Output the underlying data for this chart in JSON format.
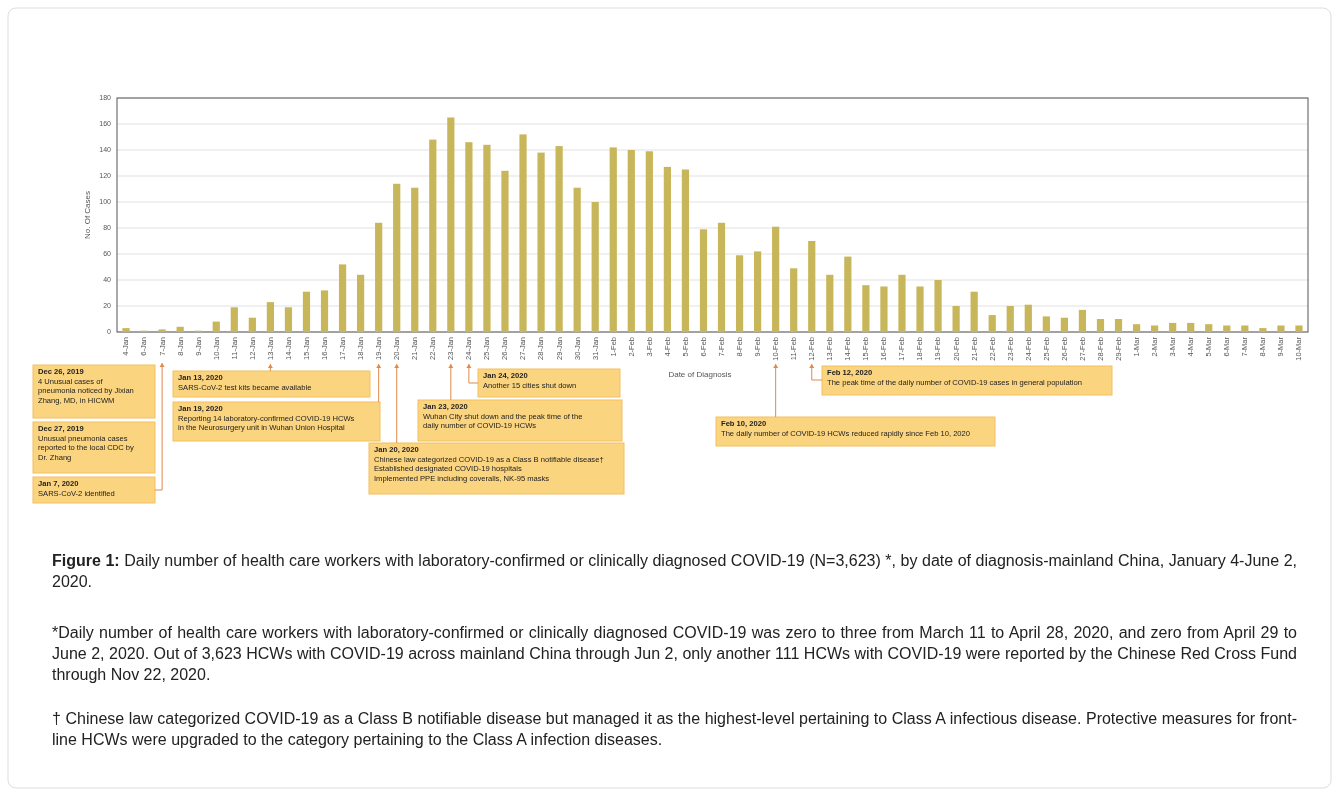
{
  "chart_data": {
    "type": "bar",
    "xlabel": "Date of Diagnosis",
    "ylabel": "No. Of Cases",
    "categories": [
      "4-Jan",
      "6-Jan",
      "7-Jan",
      "8-Jan",
      "9-Jan",
      "10-Jan",
      "11-Jan",
      "12-Jan",
      "13-Jan",
      "14-Jan",
      "15-Jan",
      "16-Jan",
      "17-Jan",
      "18-Jan",
      "19-Jan",
      "20-Jan",
      "21-Jan",
      "22-Jan",
      "23-Jan",
      "24-Jan",
      "25-Jan",
      "26-Jan",
      "27-Jan",
      "28-Jan",
      "29-Jan",
      "30-Jan",
      "31-Jan",
      "1-Feb",
      "2-Feb",
      "3-Feb",
      "4-Feb",
      "5-Feb",
      "6-Feb",
      "7-Feb",
      "8-Feb",
      "9-Feb",
      "10-Feb",
      "11-Feb",
      "12-Feb",
      "13-Feb",
      "14-Feb",
      "15-Feb",
      "16-Feb",
      "17-Feb",
      "18-Feb",
      "19-Feb",
      "20-Feb",
      "21-Feb",
      "22-Feb",
      "23-Feb",
      "24-Feb",
      "25-Feb",
      "26-Feb",
      "27-Feb",
      "28-Feb",
      "29-Feb",
      "1-Mar",
      "2-Mar",
      "3-Mar",
      "4-Mar",
      "5-Mar",
      "6-Mar",
      "7-Mar",
      "8-Mar",
      "9-Mar",
      "10-Mar"
    ],
    "values": [
      3,
      1,
      2,
      4,
      1,
      8,
      19,
      11,
      23,
      19,
      31,
      32,
      52,
      44,
      84,
      114,
      111,
      148,
      165,
      146,
      144,
      124,
      152,
      138,
      143,
      111,
      100,
      142,
      140,
      139,
      127,
      125,
      79,
      84,
      59,
      62,
      81,
      49,
      70,
      44,
      58,
      36,
      35,
      44,
      35,
      40,
      20,
      31,
      13,
      20,
      21,
      12,
      11,
      17,
      10,
      10,
      6,
      5,
      7,
      7,
      6,
      5,
      5,
      3,
      5,
      5
    ],
    "color": "#c8b65a",
    "ylim": [
      0,
      180
    ],
    "yticks": [
      0,
      20,
      40,
      60,
      80,
      100,
      120,
      140,
      160,
      180
    ],
    "grid": "y",
    "annotations": [
      "Dec 26, 2019\n4 Unusual cases of\npneumonia noticed by Jixian\nZhang, MD, in HICWM",
      "Dec 27, 2019\nUnusual pneumonia cases\nreported to the local CDC by\nDr. Zhang",
      "Jan 7, 2020\nSARS-CoV-2 identified",
      "Jan 13, 2020\nSARS-CoV-2 test kits became available",
      "Jan 19, 2020\nReporting 14 laboratory-confirmed COVID-19 HCWs\nin the Neurosurgery unit in Wuhan Union Hospital",
      "Jan 24, 2020\nAnother 15 cities shut down",
      "Jan 23, 2020\nWuhan City shut down and the peak time of the\ndaily number of  COVID-19 HCWs",
      "Jan 20, 2020\nChinese law categorized COVID-19 as a Class B notifiable disease†\nEstablished designated COVID-19 hospitals\nImplemented PPE including coveralls, NK-95 masks",
      "Feb 12, 2020\nThe peak time of the daily number of  COVID-19 cases in general population",
      "Feb 10, 2020\nThe daily number of  COVID-19 HCWs reduced rapidly since Feb 10, 2020",
      "Figure 1: Daily number of health care workers with laboratory-confirmed or clinically diagnosed COVID-19 (N=3,623) *, by date of diagnosis-mainland China, January 4-June 2, 2020.",
      "*Daily number of health care workers with laboratory-confirmed or clinically diagnosed COVID-19 was zero to three from March 11 to April 28, 2020, and zero from April 29 to June 2, 2020. Out of 3,623 HCWs with COVID-19 across mainland China through Jun 2, only another 111 HCWs with COVID-19 were reported by the Chinese Red Cross Fund through Nov 22, 2020.",
      "† Chinese law categorized COVID-19 as a Class B notifiable disease but managed it as the highest-level pertaining to Class A infectious disease. Protective measures for front-line HCWs were upgraded to the category pertaining to the Class A infection diseases."
    ]
  }
}
